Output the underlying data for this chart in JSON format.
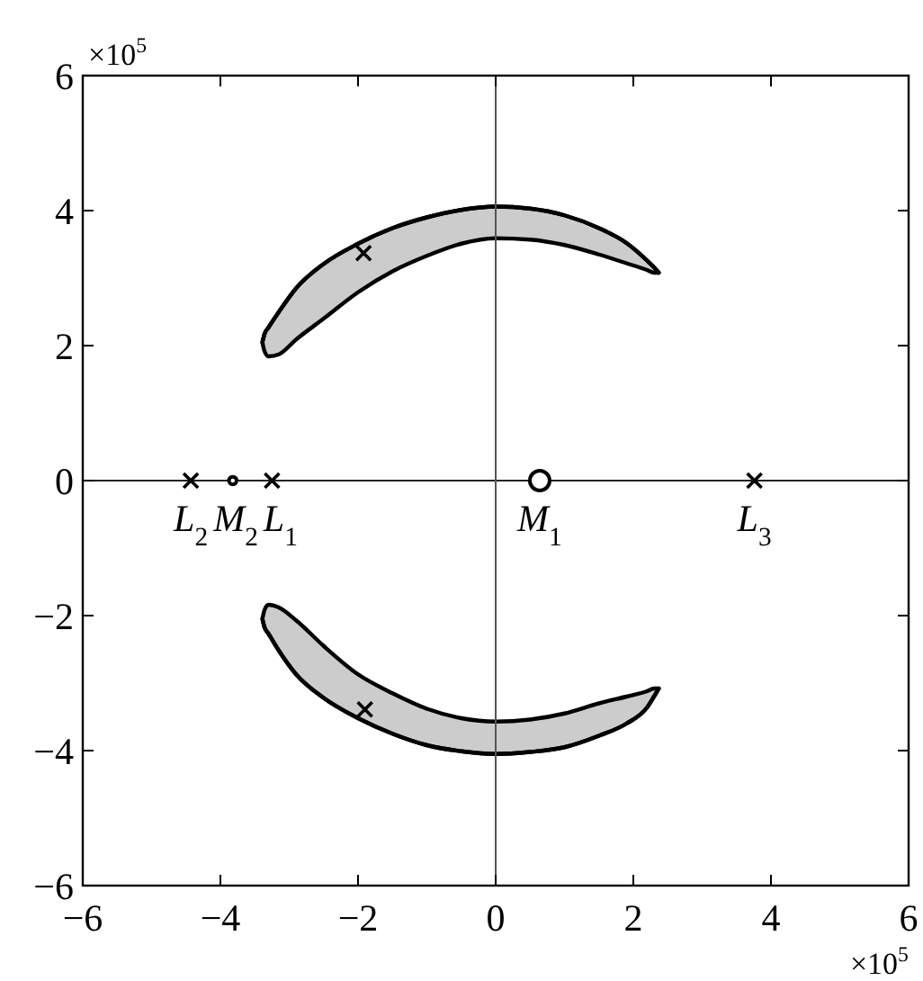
{
  "chart_data": {
    "type": "scatter",
    "xlabel": "×10$^{5}$",
    "ylabel": "×10$^{5}$",
    "xlim": [
      -6,
      6
    ],
    "ylim": [
      -6,
      6
    ],
    "xticks": [
      -6,
      -4,
      -2,
      0,
      2,
      4,
      6
    ],
    "yticks": [
      -6,
      -4,
      -2,
      0,
      2,
      4,
      6
    ],
    "ref_lines": [
      {
        "axis": "x",
        "value": 0,
        "color": "#555555"
      },
      {
        "axis": "y",
        "value": 0,
        "color": "#222222"
      }
    ],
    "series": [
      {
        "type": "line",
        "color": "#000000",
        "x": [
          -3.39,
          -3.36,
          -3.3,
          -3.15,
          -2.9,
          -2.5,
          -2.0,
          -1.5,
          -1.0,
          -0.5,
          0,
          0.5,
          1.0,
          1.5,
          1.9,
          2.2,
          2.3,
          2.37
        ],
        "values": [
          2.05,
          2.17,
          2.27,
          2.5,
          2.85,
          3.21,
          3.51,
          3.74,
          3.9,
          4.01,
          4.06,
          4.03,
          3.93,
          3.74,
          3.52,
          3.26,
          3.16,
          3.08
        ],
        "lower": [
          2.05,
          1.92,
          1.84,
          1.87,
          2.09,
          2.4,
          2.79,
          3.1,
          3.33,
          3.51,
          3.59,
          3.57,
          3.49,
          3.35,
          3.22,
          3.12,
          3.08,
          3.08
        ],
        "upper": [
          2.05,
          2.17,
          2.27,
          2.5,
          2.85,
          3.21,
          3.51,
          3.74,
          3.9,
          4.01,
          4.06,
          4.03,
          3.93,
          3.74,
          3.52,
          3.26,
          3.16,
          3.08
        ]
      },
      {
        "type": "line",
        "color": "#000000",
        "x": [
          -3.39,
          -3.36,
          -3.3,
          -3.15,
          -2.9,
          -2.5,
          -2.0,
          -1.5,
          -1.0,
          -0.5,
          0,
          0.5,
          1.0,
          1.5,
          1.9,
          2.2,
          2.3,
          2.37
        ],
        "values": [
          -2.05,
          -2.17,
          -2.27,
          -2.52,
          -2.87,
          -3.22,
          -3.52,
          -3.75,
          -3.92,
          -4.01,
          -4.05,
          -4.02,
          -3.95,
          -3.78,
          -3.6,
          -3.36,
          -3.2,
          -3.08
        ],
        "lower": [
          -2.05,
          -2.17,
          -2.27,
          -2.52,
          -2.87,
          -3.22,
          -3.52,
          -3.75,
          -3.92,
          -4.01,
          -4.05,
          -4.02,
          -3.95,
          -3.78,
          -3.6,
          -3.36,
          -3.2,
          -3.08
        ],
        "upper": [
          -2.05,
          -1.92,
          -1.84,
          -1.88,
          -2.07,
          -2.45,
          -2.87,
          -3.15,
          -3.38,
          -3.52,
          -3.57,
          -3.54,
          -3.45,
          -3.3,
          -3.2,
          -3.12,
          -3.08,
          -3.08
        ]
      },
      {
        "marker": "cross",
        "color": "#000000",
        "x": [
          -4.43,
          -3.25,
          3.76,
          -1.92,
          -1.9
        ],
        "values": [
          0,
          0,
          0,
          3.37,
          -3.39
        ]
      },
      {
        "type": "bubble",
        "marker": "circle",
        "color": "#000000",
        "x": [
          0.64,
          -3.82
        ],
        "values": [
          0,
          0
        ],
        "sizes": [
          1,
          0.15
        ]
      }
    ],
    "annotations": [
      {
        "text": "L$_{2}$",
        "x": -4.43,
        "y": 0
      },
      {
        "text": "M$_{2}$",
        "x": -3.82,
        "y": 0
      },
      {
        "text": "L$_{1}$",
        "x": -3.25,
        "y": 0
      },
      {
        "text": "M$_{1}$",
        "x": 0.64,
        "y": 0
      },
      {
        "text": "L$_{3}$",
        "x": 3.76,
        "y": 0
      }
    ]
  }
}
